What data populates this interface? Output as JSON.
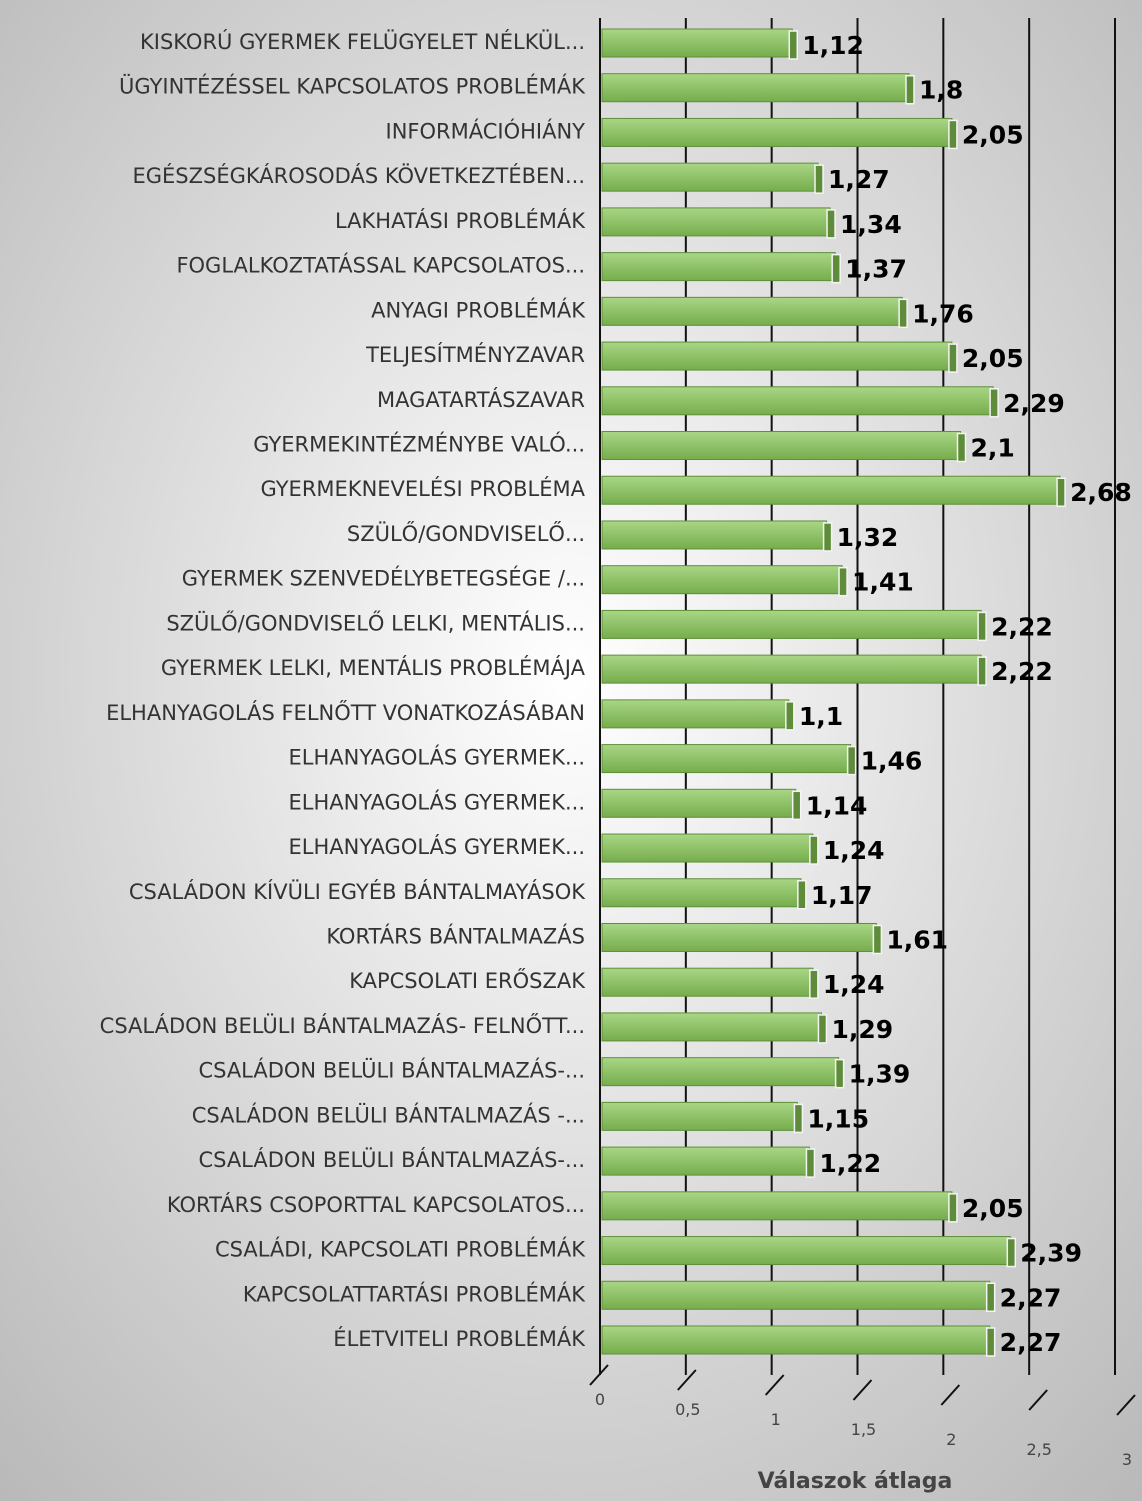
{
  "chart_data": {
    "type": "bar",
    "orientation": "horizontal",
    "x_label": "Válaszok átlaga",
    "categories": [
      "KISKORÚ GYERMEK FELÜGYELET NÉLKÜL...",
      "ÜGYINTÉZÉSSEL KAPCSOLATOS PROBLÉMÁK",
      "INFORMÁCIÓHIÁNY",
      "EGÉSZSÉGKÁROSODÁS KÖVETKEZTÉBEN...",
      "LAKHATÁSI PROBLÉMÁK",
      "FOGLALKOZTATÁSSAL KAPCSOLATOS...",
      "ANYAGI PROBLÉMÁK",
      "TELJESÍTMÉNYZAVAR",
      "MAGATARTÁSZAVAR",
      "GYERMEKINTÉZMÉNYBE VALÓ...",
      "GYERMEKNEVELÉSI PROBLÉMA",
      "SZÜLŐ/GONDVISELŐ...",
      "GYERMEK SZENVEDÉLYBETEGSÉGE /...",
      "SZÜLŐ/GONDVISELŐ LELKI, MENTÁLIS...",
      "GYERMEK LELKI, MENTÁLIS PROBLÉMÁJA",
      "ELHANYAGOLÁS FELNŐTT VONATKOZÁSÁBAN",
      "ELHANYAGOLÁS GYERMEK...",
      "ELHANYAGOLÁS GYERMEK...",
      "ELHANYAGOLÁS GYERMEK...",
      "CSALÁDON KÍVÜLI EGYÉB BÁNTALMAYÁSOK",
      "KORTÁRS BÁNTALMAZÁS",
      "KAPCSOLATI ERŐSZAK",
      "CSALÁDON BELÜLI BÁNTALMAZÁS- FELNŐTT...",
      "CSALÁDON BELÜLI BÁNTALMAZÁS-...",
      "CSALÁDON BELÜLI BÁNTALMAZÁS -...",
      "CSALÁDON BELÜLI BÁNTALMAZÁS-...",
      "KORTÁRS CSOPORTTAL KAPCSOLATOS...",
      "CSALÁDI, KAPCSOLATI PROBLÉMÁK",
      "KAPCSOLATTARTÁSI PROBLÉMÁK",
      "ÉLETVITELI PROBLÉMÁK"
    ],
    "values": [
      1.12,
      1.8,
      2.05,
      1.27,
      1.34,
      1.37,
      1.76,
      2.05,
      2.29,
      2.1,
      2.68,
      1.32,
      1.41,
      2.22,
      2.22,
      1.1,
      1.46,
      1.14,
      1.24,
      1.17,
      1.61,
      1.24,
      1.29,
      1.39,
      1.15,
      1.22,
      2.05,
      2.39,
      2.27,
      2.27
    ],
    "value_labels": [
      "1,12",
      "1,8",
      "2,05",
      "1,27",
      "1,34",
      "1,37",
      "1,76",
      "2,05",
      "2,29",
      "2,1",
      "2,68",
      "1,32",
      "1,41",
      "2,22",
      "2,22",
      "1,1",
      "1,46",
      "1,14",
      "1,24",
      "1,17",
      "1,61",
      "1,24",
      "1,29",
      "1,39",
      "1,15",
      "1,22",
      "2,05",
      "2,39",
      "2,27",
      "2,27"
    ],
    "color": "#8cc063",
    "xlim": [
      0,
      3
    ],
    "xticks": [
      0,
      {
        "value": 0.5,
        "label": "0,5"
      },
      1,
      {
        "value": 1.5,
        "label": "1,5"
      },
      2,
      {
        "value": 2.5,
        "label": "2,5"
      },
      3
    ],
    "grid": true
  }
}
